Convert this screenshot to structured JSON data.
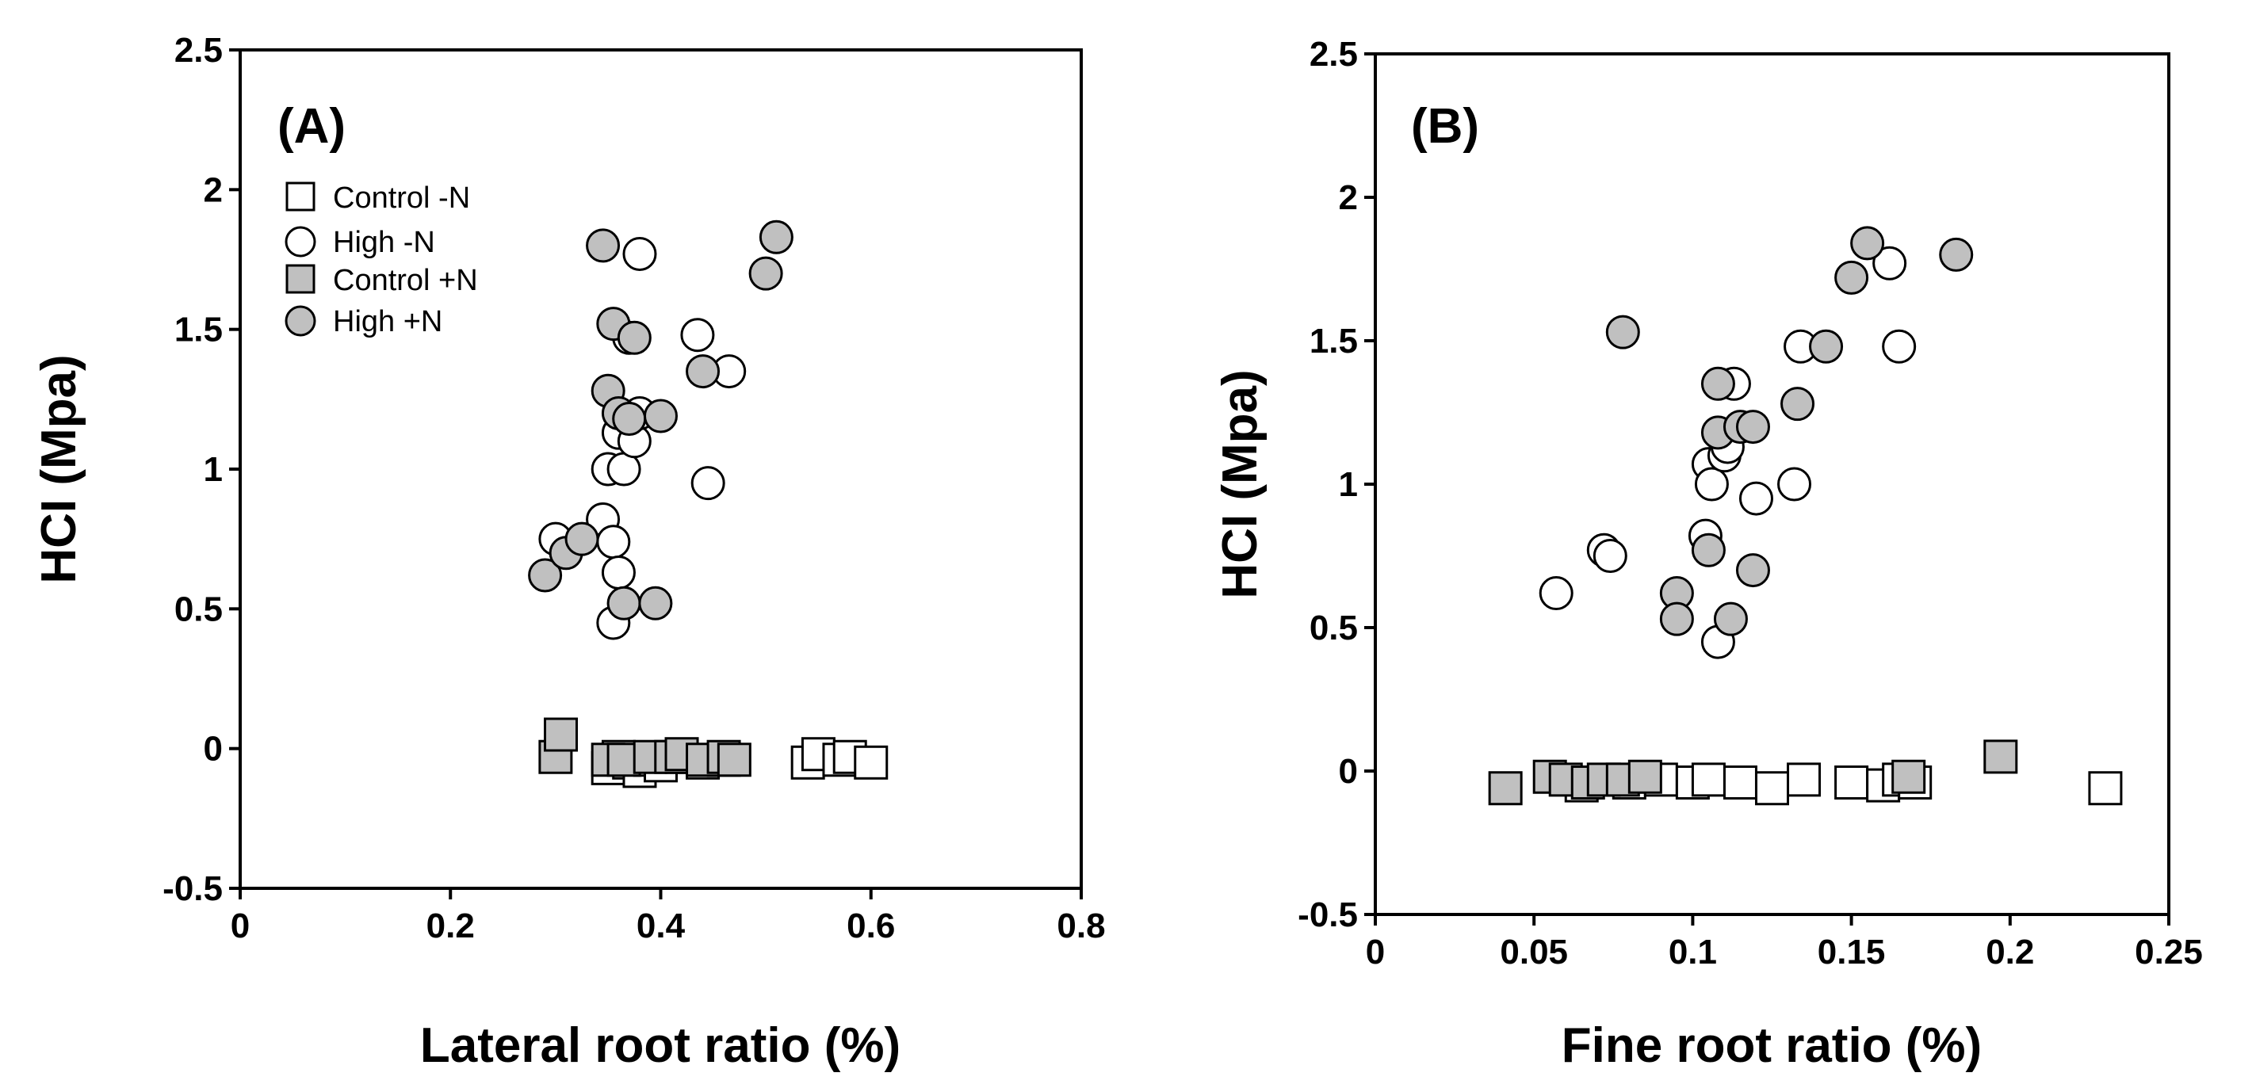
{
  "chart_data": [
    {
      "type": "scatter",
      "panel_label": "(A)",
      "xlabel": "Lateral root ratio (%)",
      "ylabel": "HCI (Mpa)",
      "xlim": [
        0,
        0.8
      ],
      "ylim": [
        -0.5,
        2.5
      ],
      "x_ticks": [
        "0",
        "0.2",
        "0.4",
        "0.6",
        "0.8"
      ],
      "y_ticks": [
        "2.5",
        "2",
        "1.5",
        "1",
        "0.5",
        "0",
        "-0.5"
      ],
      "legend": [
        "Control -N",
        "High -N",
        "Control +N",
        "High +N"
      ],
      "series": [
        {
          "name": "Control -N",
          "marker": "square",
          "fill": "#ffffff",
          "x": [
            0.35,
            0.36,
            0.37,
            0.38,
            0.39,
            0.4,
            0.42,
            0.44,
            0.46,
            0.54,
            0.55,
            0.57,
            0.58,
            0.6
          ],
          "y": [
            -0.07,
            -0.03,
            -0.05,
            -0.08,
            -0.04,
            -0.06,
            -0.03,
            -0.05,
            -0.04,
            -0.05,
            -0.02,
            -0.04,
            -0.03,
            -0.05
          ]
        },
        {
          "name": "High -N",
          "marker": "circle",
          "fill": "#ffffff",
          "x": [
            0.3,
            0.345,
            0.35,
            0.355,
            0.36,
            0.36,
            0.365,
            0.37,
            0.375,
            0.38,
            0.38,
            0.435,
            0.445,
            0.465,
            0.355
          ],
          "y": [
            0.75,
            0.82,
            1.0,
            0.74,
            0.63,
            1.13,
            1.0,
            1.47,
            1.1,
            1.2,
            1.77,
            1.48,
            0.95,
            1.35,
            0.45
          ]
        },
        {
          "name": "Control +N",
          "marker": "square",
          "fill": "#c0c0c0",
          "x": [
            0.3,
            0.305,
            0.35,
            0.365,
            0.39,
            0.41,
            0.42,
            0.44,
            0.46,
            0.47
          ],
          "y": [
            -0.03,
            0.05,
            -0.04,
            -0.04,
            -0.03,
            -0.03,
            -0.02,
            -0.04,
            -0.03,
            -0.04
          ]
        },
        {
          "name": "High +N",
          "marker": "circle",
          "fill": "#c0c0c0",
          "x": [
            0.29,
            0.31,
            0.325,
            0.345,
            0.35,
            0.355,
            0.36,
            0.365,
            0.37,
            0.375,
            0.395,
            0.4,
            0.44,
            0.5,
            0.51
          ],
          "y": [
            0.62,
            0.7,
            0.75,
            1.8,
            1.28,
            1.52,
            1.2,
            0.52,
            1.18,
            1.47,
            0.52,
            1.19,
            1.35,
            1.7,
            1.83
          ]
        }
      ]
    },
    {
      "type": "scatter",
      "panel_label": "(B)",
      "xlabel": "Fine root ratio (%)",
      "ylabel": "HCI (Mpa)",
      "xlim": [
        0,
        0.25
      ],
      "ylim": [
        -0.5,
        2.5
      ],
      "x_ticks": [
        "0",
        "0.05",
        "0.1",
        "0.15",
        "0.2",
        "0.25"
      ],
      "y_ticks": [
        "2.5",
        "2",
        "1.5",
        "1",
        "0.5",
        "0",
        "-0.5"
      ],
      "series": [
        {
          "name": "Control -N",
          "marker": "square",
          "fill": "#ffffff",
          "x": [
            0.065,
            0.08,
            0.09,
            0.1,
            0.105,
            0.115,
            0.125,
            0.135,
            0.15,
            0.16,
            0.165,
            0.17,
            0.23
          ],
          "y": [
            -0.05,
            -0.04,
            -0.03,
            -0.04,
            -0.03,
            -0.04,
            -0.06,
            -0.03,
            -0.04,
            -0.05,
            -0.03,
            -0.04,
            -0.06
          ]
        },
        {
          "name": "High -N",
          "marker": "circle",
          "fill": "#ffffff",
          "x": [
            0.057,
            0.072,
            0.074,
            0.104,
            0.105,
            0.106,
            0.108,
            0.11,
            0.111,
            0.113,
            0.12,
            0.132,
            0.134,
            0.162,
            0.165
          ],
          "y": [
            0.62,
            0.77,
            0.75,
            0.82,
            1.07,
            1.0,
            0.45,
            1.1,
            1.13,
            1.35,
            0.95,
            1.0,
            1.48,
            1.77,
            1.48
          ]
        },
        {
          "name": "Control +N",
          "marker": "square",
          "fill": "#c0c0c0",
          "x": [
            0.041,
            0.055,
            0.06,
            0.067,
            0.072,
            0.078,
            0.085,
            0.168,
            0.197
          ],
          "y": [
            -0.06,
            -0.02,
            -0.03,
            -0.04,
            -0.03,
            -0.03,
            -0.02,
            -0.02,
            0.05
          ]
        },
        {
          "name": "High +N",
          "marker": "circle",
          "fill": "#c0c0c0",
          "x": [
            0.078,
            0.095,
            0.095,
            0.105,
            0.108,
            0.108,
            0.112,
            0.115,
            0.119,
            0.119,
            0.133,
            0.142,
            0.15,
            0.155,
            0.183
          ],
          "y": [
            1.53,
            0.62,
            0.53,
            0.77,
            1.35,
            1.18,
            0.53,
            1.2,
            0.7,
            1.2,
            1.28,
            1.48,
            1.72,
            1.84,
            1.8
          ]
        }
      ]
    }
  ]
}
